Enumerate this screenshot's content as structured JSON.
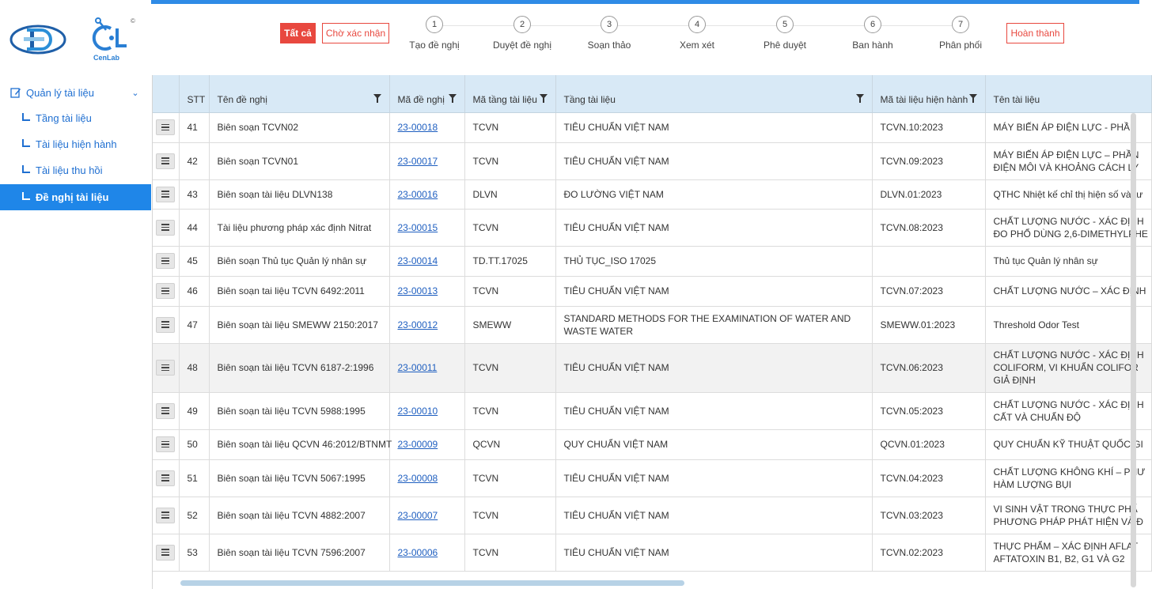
{
  "brand": {
    "cenlab_text": "CenLab",
    "copyright_mark": "©"
  },
  "sidebar": {
    "group": {
      "label": "Quản lý tài liệu",
      "icon": "edit-icon",
      "chevron": "chevron-down-icon"
    },
    "items": [
      {
        "label": "Tầng tài liệu",
        "active": false
      },
      {
        "label": "Tài liệu hiện hành",
        "active": false
      },
      {
        "label": "Tài liệu thu hồi",
        "active": false
      },
      {
        "label": "Đề nghị tài liệu",
        "active": true
      }
    ]
  },
  "status_filter": {
    "all_label": "Tất cả",
    "waiting_label": "Chờ xác nhận",
    "done_label": "Hoàn thành",
    "steps": [
      {
        "number": "1",
        "label": "Tạo đề nghị"
      },
      {
        "number": "2",
        "label": "Duyệt đề nghị"
      },
      {
        "number": "3",
        "label": "Soạn thảo"
      },
      {
        "number": "4",
        "label": "Xem xét"
      },
      {
        "number": "5",
        "label": "Phê duyệt"
      },
      {
        "number": "6",
        "label": "Ban hành"
      },
      {
        "number": "7",
        "label": "Phân phối"
      }
    ]
  },
  "table": {
    "columns": [
      {
        "label": "",
        "filter": false
      },
      {
        "label": "STT",
        "filter": false
      },
      {
        "label": "Tên đề nghị",
        "filter": true
      },
      {
        "label": "Mã đề nghị",
        "filter": true
      },
      {
        "label": "Mã tầng tài liệu",
        "filter": true
      },
      {
        "label": "Tầng tài liệu",
        "filter": true
      },
      {
        "label": "Mã tài liệu hiện hành",
        "filter": true
      },
      {
        "label": "Tên tài liệu",
        "filter": false
      }
    ],
    "rows": [
      {
        "stt": "41",
        "name": "Biên soạn TCVN02",
        "code": "23-00018",
        "layer_code": "TCVN",
        "layer": "TIÊU CHUẨN VIỆT NAM",
        "doc_code": "TCVN.10:2023",
        "doc_name": "MÁY BIẾN ÁP ĐIỆN LỰC - PHẦN"
      },
      {
        "stt": "42",
        "name": "Biên soạn TCVN01",
        "code": "23-00017",
        "layer_code": "TCVN",
        "layer": "TIÊU CHUẨN VIỆT NAM",
        "doc_code": "TCVN.09:2023",
        "doc_name": "MÁY BIẾN ÁP ĐIỆN LỰC – PHẦN\nĐIỆN MÔI VÀ KHOẢNG CÁCH LY"
      },
      {
        "stt": "43",
        "name": "Biên soạn tài liệu DLVN138",
        "code": "23-00016",
        "layer_code": "DLVN",
        "layer": "ĐO LƯỜNG VIỆT NAM",
        "doc_code": "DLVN.01:2023",
        "doc_name": "QTHC Nhiệt kế chỉ thị hiện số và tư"
      },
      {
        "stt": "44",
        "name": "Tài liệu phương pháp xác định Nitrat",
        "code": "23-00015",
        "layer_code": "TCVN",
        "layer": "TIÊU CHUẨN VIỆT NAM",
        "doc_code": "TCVN.08:2023",
        "doc_name": "CHẤT LƯỢNG NƯỚC - XÁC ĐỊNH\nĐO PHỔ DÙNG 2,6-DIMETHYLPHE"
      },
      {
        "stt": "45",
        "name": "Biên soạn Thủ tục Quản lý nhân sự",
        "code": "23-00014",
        "layer_code": "TD.TT.17025",
        "layer": "THỦ TỤC_ISO 17025",
        "doc_code": "",
        "doc_name": "Thủ tục Quản lý nhân sự"
      },
      {
        "stt": "46",
        "name": "Biên soạn tai liệu TCVN 6492:2011",
        "code": "23-00013",
        "layer_code": "TCVN",
        "layer": "TIÊU CHUẨN VIỆT NAM",
        "doc_code": "TCVN.07:2023",
        "doc_name": "CHẤT LƯỢNG NƯỚC – XÁC ĐỊNH"
      },
      {
        "stt": "47",
        "name": "Biên soạn tài liệu SMEWW 2150:2017",
        "code": "23-00012",
        "layer_code": "SMEWW",
        "layer": "STANDARD METHODS FOR THE EXAMINATION OF WATER AND WASTE WATER",
        "doc_code": "SMEWW.01:2023",
        "doc_name": "Threshold Odor Test"
      },
      {
        "stt": "48",
        "name": "Biên soạn tài liệu TCVN 6187-2:1996",
        "code": "23-00011",
        "layer_code": "TCVN",
        "layer": "TIÊU CHUẨN VIỆT NAM",
        "doc_code": "TCVN.06:2023",
        "doc_name": "CHẤT LƯỢNG NƯỚC - XÁC ĐỊNH\nCOLIFORM, VI KHUẨN COLIFOR\nGIẢ ĐỊNH"
      },
      {
        "stt": "49",
        "name": "Biên soạn tài liệu TCVN 5988:1995",
        "code": "23-00010",
        "layer_code": "TCVN",
        "layer": "TIÊU CHUẨN VIỆT NAM",
        "doc_code": "TCVN.05:2023",
        "doc_name": "CHẤT LƯỢNG NƯỚC - XÁC ĐỊNH\nCẤT VÀ CHUẨN ĐỘ"
      },
      {
        "stt": "50",
        "name": "Biên soạn tài liệu QCVN 46:2012/BTNMT",
        "code": "23-00009",
        "layer_code": "QCVN",
        "layer": "QUY CHUẨN VIỆT NAM",
        "doc_code": "QCVN.01:2023",
        "doc_name": "QUY CHUẨN KỸ THUẬT QUỐC GI"
      },
      {
        "stt": "51",
        "name": "Biên soạn tài liệu TCVN 5067:1995",
        "code": "23-00008",
        "layer_code": "TCVN",
        "layer": "TIÊU CHUẨN VIỆT NAM",
        "doc_code": "TCVN.04:2023",
        "doc_name": "CHẤT LƯỢNG KHÔNG KHÍ – PHƯ\nHÀM LƯỢNG BỤI"
      },
      {
        "stt": "52",
        "name": "Biên soạn tài liệu TCVN 4882:2007",
        "code": "23-00007",
        "layer_code": "TCVN",
        "layer": "TIÊU CHUẨN VIỆT NAM",
        "doc_code": "TCVN.03:2023",
        "doc_name": "VI SINH VẬT TRONG THỰC PHẨ\nPHƯƠNG PHÁP PHÁT HIỆN VÀ Đ"
      },
      {
        "stt": "53",
        "name": "Biên soạn tài liệu TCVN 7596:2007",
        "code": "23-00006",
        "layer_code": "TCVN",
        "layer": "TIÊU CHUẨN VIỆT NAM",
        "doc_code": "TCVN.02:2023",
        "doc_name": "THỰC PHẨM – XÁC ĐỊNH AFLAT\nAFTATOXIN B1, B2, G1 VÀ G2"
      }
    ]
  },
  "colors": {
    "accent": "#1f86e8",
    "danger": "#e8483f",
    "header_bg": "#d8e9f6",
    "link": "#1f5fc0"
  }
}
